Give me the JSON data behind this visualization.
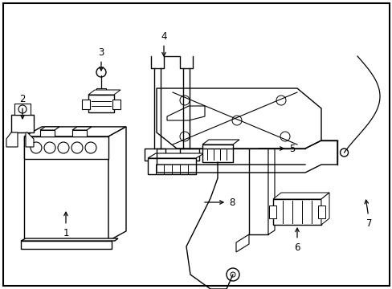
{
  "background_color": "#ffffff",
  "border_color": "#000000",
  "line_color": "#000000",
  "line_width": 1.0,
  "label_fontsize": 8.5,
  "arrow_color": "#000000"
}
